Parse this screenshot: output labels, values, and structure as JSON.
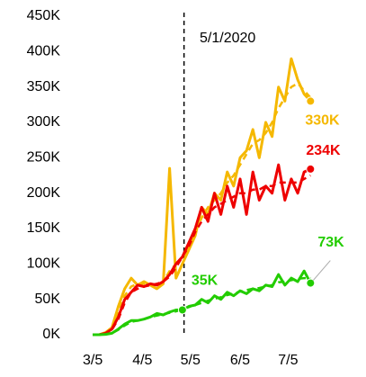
{
  "chart_data": {
    "type": "line",
    "x": [
      "3/5",
      "3/9",
      "3/13",
      "3/17",
      "3/21",
      "3/25",
      "3/29",
      "4/2",
      "4/6",
      "4/10",
      "4/14",
      "4/18",
      "4/22",
      "4/26",
      "4/30",
      "5/4",
      "5/8",
      "5/12",
      "5/16",
      "5/20",
      "5/24",
      "5/28",
      "6/1",
      "6/5",
      "6/9",
      "6/13",
      "6/17",
      "6/21",
      "6/25",
      "6/29",
      "7/3",
      "7/7",
      "7/11",
      "7/15",
      "7/19"
    ],
    "xlim": [
      "3/1",
      "7/25"
    ],
    "xticks": [
      "3/5",
      "4/5",
      "5/5",
      "6/5",
      "7/5"
    ],
    "ylim": [
      0,
      450000
    ],
    "yticks": [
      {
        "value": 0,
        "label": "0K"
      },
      {
        "value": 50000,
        "label": "50K"
      },
      {
        "value": 100000,
        "label": "100K"
      },
      {
        "value": 150000,
        "label": "150K"
      },
      {
        "value": 200000,
        "label": "200K"
      },
      {
        "value": 250000,
        "label": "250K"
      },
      {
        "value": 300000,
        "label": "300K"
      },
      {
        "value": 350000,
        "label": "350K"
      },
      {
        "value": 400000,
        "label": "400K"
      },
      {
        "value": 450000,
        "label": "450K"
      }
    ],
    "vline": {
      "x": "5/1",
      "label": "5/1/2020"
    },
    "series": [
      {
        "color": "#f5b800",
        "dash": false,
        "values": [
          0,
          0,
          3000,
          10000,
          40000,
          65000,
          80000,
          70000,
          75000,
          70000,
          65000,
          72000,
          235000,
          80000,
          100000,
          120000,
          140000,
          180000,
          170000,
          200000,
          190000,
          230000,
          210000,
          250000,
          260000,
          290000,
          250000,
          300000,
          280000,
          350000,
          330000,
          390000,
          360000,
          340000,
          330000
        ],
        "value_labels": [
          null,
          null,
          null,
          null,
          null,
          null,
          null,
          null,
          null,
          null,
          null,
          null,
          null,
          null,
          null,
          null,
          null,
          null,
          null,
          null,
          null,
          null,
          null,
          null,
          null,
          null,
          null,
          null,
          null,
          null,
          null,
          null,
          null,
          null,
          "330K"
        ]
      },
      {
        "color": "#f5b800",
        "dash": true,
        "values": [
          0,
          0,
          2000,
          8000,
          30000,
          55000,
          68000,
          72000,
          72000,
          70000,
          70000,
          75000,
          90000,
          100000,
          110000,
          125000,
          145000,
          165000,
          180000,
          190000,
          200000,
          215000,
          225000,
          240000,
          255000,
          270000,
          275000,
          285000,
          300000,
          320000,
          335000,
          350000,
          355000,
          345000,
          335000
        ]
      },
      {
        "color": "#ee0000",
        "dash": false,
        "values": [
          0,
          0,
          2000,
          8000,
          25000,
          50000,
          60000,
          70000,
          68000,
          72000,
          70000,
          75000,
          85000,
          100000,
          110000,
          130000,
          150000,
          180000,
          160000,
          200000,
          170000,
          210000,
          180000,
          220000,
          170000,
          230000,
          190000,
          210000,
          200000,
          240000,
          190000,
          220000,
          200000,
          230000,
          234000
        ],
        "value_labels": [
          null,
          null,
          null,
          null,
          null,
          null,
          null,
          null,
          null,
          null,
          null,
          null,
          null,
          null,
          null,
          null,
          null,
          null,
          null,
          null,
          null,
          null,
          null,
          null,
          null,
          null,
          null,
          null,
          null,
          null,
          null,
          null,
          null,
          null,
          "234K"
        ]
      },
      {
        "color": "#ee0000",
        "dash": true,
        "values": [
          0,
          0,
          2000,
          7000,
          22000,
          45000,
          60000,
          65000,
          68000,
          70000,
          72000,
          75000,
          82000,
          95000,
          110000,
          125000,
          145000,
          160000,
          170000,
          180000,
          185000,
          190000,
          195000,
          200000,
          200000,
          205000,
          205000,
          210000,
          210000,
          215000,
          215000,
          215000,
          215000,
          220000,
          225000
        ]
      },
      {
        "color": "#22cc00",
        "dash": false,
        "values": [
          0,
          0,
          500,
          2000,
          8000,
          15000,
          20000,
          20000,
          22000,
          25000,
          30000,
          28000,
          32000,
          35000,
          35000,
          40000,
          42000,
          50000,
          45000,
          55000,
          50000,
          60000,
          55000,
          62000,
          58000,
          65000,
          62000,
          70000,
          68000,
          85000,
          70000,
          80000,
          75000,
          90000,
          73000
        ],
        "value_labels": [
          null,
          null,
          null,
          null,
          null,
          null,
          null,
          null,
          null,
          null,
          null,
          null,
          null,
          null,
          "35K",
          null,
          null,
          null,
          null,
          null,
          null,
          null,
          null,
          null,
          null,
          null,
          null,
          null,
          null,
          null,
          null,
          null,
          null,
          null,
          "73K"
        ]
      },
      {
        "color": "#22cc00",
        "dash": true,
        "values": [
          0,
          0,
          500,
          2000,
          7000,
          13000,
          18000,
          20000,
          22000,
          25000,
          27000,
          29000,
          31000,
          33000,
          36000,
          39000,
          42000,
          45000,
          48000,
          51000,
          53000,
          56000,
          58000,
          61000,
          63000,
          65000,
          66000,
          68000,
          70000,
          74000,
          75000,
          77000,
          79000,
          80000,
          80000
        ]
      }
    ]
  }
}
